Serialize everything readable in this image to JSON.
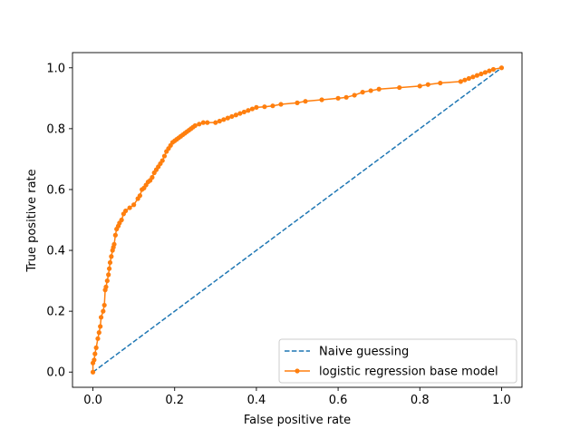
{
  "chart_data": {
    "type": "line",
    "xlabel": "False positive rate",
    "ylabel": "True positive rate",
    "xlim": [
      -0.05,
      1.05
    ],
    "ylim": [
      -0.05,
      1.05
    ],
    "xticks": [
      0.0,
      0.2,
      0.4,
      0.6,
      0.8,
      1.0
    ],
    "yticks": [
      0.0,
      0.2,
      0.4,
      0.6,
      0.8,
      1.0
    ],
    "tick_labels": [
      "0.0",
      "0.2",
      "0.4",
      "0.6",
      "0.8",
      "1.0"
    ],
    "grid": false,
    "legend_position": "lower-right",
    "series": [
      {
        "name": "Naive guessing",
        "style": "dashed",
        "color": "#1f77b4",
        "x": [
          0,
          1
        ],
        "y": [
          0,
          1
        ]
      },
      {
        "name": "logistic regression base model",
        "style": "solid-dot-markers",
        "color": "#ff7f0e",
        "x": [
          0.0,
          0.0,
          0.003,
          0.005,
          0.008,
          0.012,
          0.015,
          0.018,
          0.02,
          0.025,
          0.028,
          0.03,
          0.032,
          0.035,
          0.038,
          0.04,
          0.042,
          0.045,
          0.048,
          0.05,
          0.052,
          0.055,
          0.058,
          0.062,
          0.065,
          0.07,
          0.075,
          0.08,
          0.09,
          0.1,
          0.11,
          0.115,
          0.12,
          0.125,
          0.13,
          0.135,
          0.14,
          0.145,
          0.15,
          0.155,
          0.16,
          0.165,
          0.17,
          0.175,
          0.18,
          0.185,
          0.19,
          0.195,
          0.2,
          0.205,
          0.21,
          0.215,
          0.22,
          0.225,
          0.23,
          0.235,
          0.24,
          0.245,
          0.25,
          0.26,
          0.27,
          0.28,
          0.3,
          0.31,
          0.32,
          0.33,
          0.34,
          0.35,
          0.36,
          0.37,
          0.38,
          0.39,
          0.4,
          0.42,
          0.44,
          0.46,
          0.5,
          0.52,
          0.56,
          0.6,
          0.62,
          0.64,
          0.66,
          0.68,
          0.7,
          0.75,
          0.8,
          0.82,
          0.85,
          0.9,
          0.91,
          0.92,
          0.93,
          0.94,
          0.95,
          0.96,
          0.97,
          0.98,
          1.0
        ],
        "y": [
          0.0,
          0.03,
          0.04,
          0.06,
          0.08,
          0.11,
          0.13,
          0.15,
          0.18,
          0.2,
          0.22,
          0.27,
          0.28,
          0.3,
          0.32,
          0.34,
          0.36,
          0.38,
          0.4,
          0.41,
          0.42,
          0.45,
          0.47,
          0.48,
          0.49,
          0.5,
          0.52,
          0.53,
          0.54,
          0.55,
          0.57,
          0.58,
          0.6,
          0.605,
          0.615,
          0.625,
          0.63,
          0.64,
          0.655,
          0.665,
          0.675,
          0.685,
          0.695,
          0.71,
          0.725,
          0.735,
          0.745,
          0.755,
          0.76,
          0.765,
          0.77,
          0.775,
          0.78,
          0.785,
          0.79,
          0.795,
          0.8,
          0.805,
          0.81,
          0.815,
          0.82,
          0.82,
          0.82,
          0.825,
          0.83,
          0.835,
          0.84,
          0.845,
          0.85,
          0.855,
          0.86,
          0.865,
          0.87,
          0.872,
          0.875,
          0.88,
          0.885,
          0.89,
          0.895,
          0.9,
          0.903,
          0.91,
          0.92,
          0.925,
          0.93,
          0.935,
          0.94,
          0.945,
          0.95,
          0.955,
          0.96,
          0.965,
          0.97,
          0.975,
          0.98,
          0.985,
          0.99,
          0.995,
          1.0
        ]
      }
    ]
  }
}
